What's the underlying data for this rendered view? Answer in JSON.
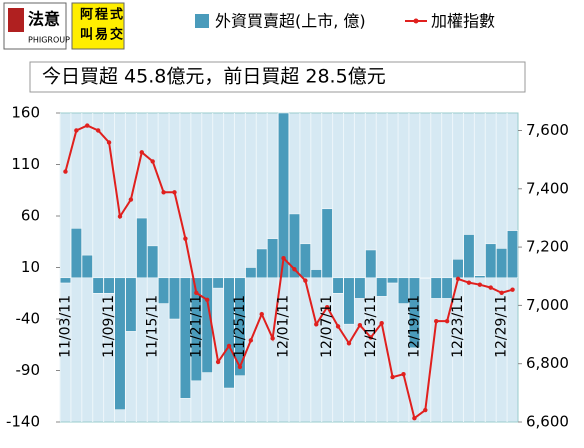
{
  "header": {
    "logo_left": {
      "mark": "法意",
      "sub": "PHIGROUP"
    },
    "logo_right": [
      "阿",
      "程",
      "式",
      "叫",
      "易",
      "交"
    ]
  },
  "chart_data": {
    "type": "bar",
    "subtitle": "今日買超 45.8億元，前日買超 28.5億元",
    "categories": [
      "11/03/11",
      null,
      null,
      null,
      "11/09/11",
      null,
      null,
      null,
      "11/15/11",
      null,
      null,
      null,
      "11/21/11",
      null,
      null,
      null,
      "11/25/11",
      null,
      null,
      null,
      "12/01/11",
      null,
      null,
      null,
      "12/07/11",
      null,
      null,
      null,
      "12/13/11",
      null,
      null,
      null,
      "12/19/11",
      null,
      null,
      null,
      "12/23/11",
      null,
      null,
      null,
      "12/29/11",
      null
    ],
    "series": [
      {
        "name": "外資買賣超(上市, 億)",
        "type": "bar",
        "axis": "y",
        "color": "#4a9bbb",
        "values": [
          -5,
          48,
          22,
          -15,
          -15,
          -128,
          -52,
          58,
          31,
          -25,
          -40,
          -117,
          -100,
          -92,
          -10,
          -107,
          -95,
          10,
          28,
          38,
          160,
          62,
          33,
          8,
          67,
          -15,
          -45,
          -20,
          27,
          -18,
          -5,
          -25,
          -68,
          0,
          -20,
          -20,
          18,
          42,
          2,
          33,
          28.5,
          45.8
        ]
      },
      {
        "name": "加權指數",
        "type": "line",
        "axis": "y2",
        "color": "#e0201e",
        "values": [
          7459,
          7600,
          7617,
          7600,
          7559,
          7305,
          7363,
          7525,
          7494,
          7388,
          7388,
          7229,
          7043,
          7019,
          6806,
          6861,
          6789,
          6880,
          6970,
          6887,
          7162,
          7124,
          7085,
          6935,
          6994,
          6928,
          6870,
          6932,
          6890,
          6939,
          6754,
          6764,
          6613,
          6641,
          6946,
          6946,
          7091,
          7078,
          7071,
          7061,
          7043,
          7054
        ]
      }
    ],
    "ylim": [
      -140,
      160
    ],
    "yticks": [
      -140,
      -90,
      -40,
      10,
      60,
      110,
      160
    ],
    "y2lim": [
      6600,
      7660
    ],
    "y2ticks": [
      {
        "value": 6600,
        "label": "6,600"
      },
      {
        "value": 6800,
        "label": "6,800"
      },
      {
        "value": 7000,
        "label": "7,000"
      },
      {
        "value": 7200,
        "label": "7,200"
      },
      {
        "value": 7400,
        "label": "7,400"
      },
      {
        "value": 7600,
        "label": "7,600"
      }
    ],
    "grid": true
  }
}
